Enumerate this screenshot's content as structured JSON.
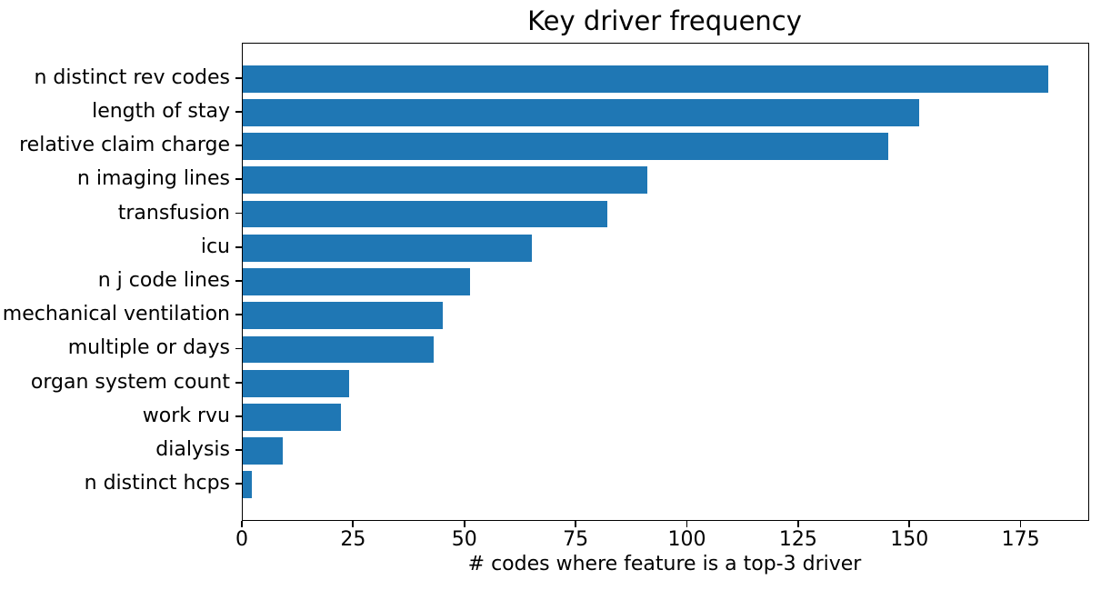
{
  "figure": {
    "background_color": "#ffffff",
    "text_color": "#000000",
    "spine_color": "#000000"
  },
  "chart_data": {
    "type": "bar",
    "orientation": "horizontal",
    "title": "Key driver frequency",
    "xlabel": "# codes where feature is a top-3 driver",
    "ylabel": "",
    "categories": [
      "n distinct rev codes",
      "length of stay",
      "relative claim charge",
      "n imaging lines",
      "transfusion",
      "icu",
      "n j code lines",
      "mechanical ventilation",
      "multiple or days",
      "organ system count",
      "work rvu",
      "dialysis",
      "n distinct hcps"
    ],
    "values": [
      181,
      152,
      145,
      91,
      82,
      65,
      51,
      45,
      43,
      24,
      22,
      9,
      2
    ],
    "xticks": [
      0,
      25,
      50,
      75,
      100,
      125,
      150,
      175
    ],
    "xlim": [
      0,
      190
    ],
    "bar_color": "#1f77b4",
    "bar_relative_height": 0.8,
    "grid": false,
    "legend": null
  }
}
